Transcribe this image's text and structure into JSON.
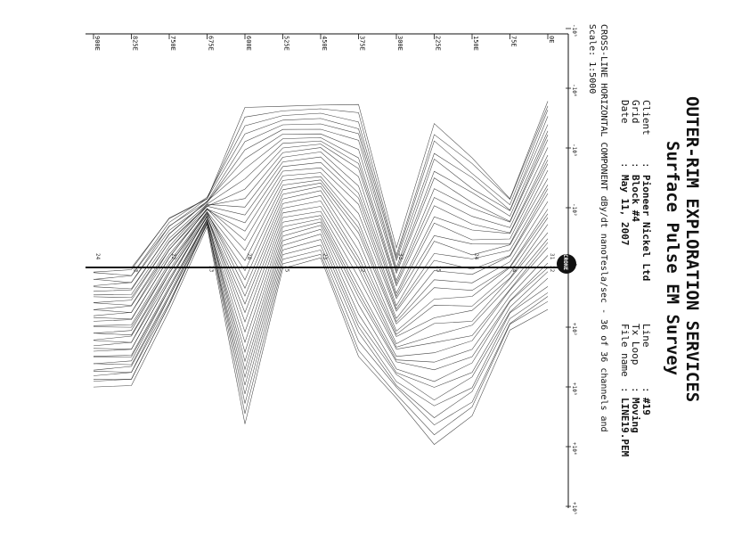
{
  "header": {
    "title_line1": "OUTER-RIM EXPLORATION SERVICES",
    "title_line2": "Surface Pulse EM Survey",
    "left_fields": [
      {
        "label": "Client",
        "value": "Pioneer Nickel Ltd"
      },
      {
        "label": "Grid",
        "value": "Block #4"
      },
      {
        "label": "Date",
        "value": "May 11, 2007"
      }
    ],
    "right_fields": [
      {
        "label": "Line",
        "value": "#19"
      },
      {
        "label": "Tx Loop",
        "value": "Moving"
      },
      {
        "label": "File name",
        "value": "LINE19.PEM"
      }
    ]
  },
  "logo_text": "CRONE",
  "caption": {
    "line1": "CROSS-LINE HORIZONTAL COMPONENT dBy/dt nanoTesla/sec - 36 of 36 channels and",
    "line2": "Scale: 1:5000"
  },
  "colors": {
    "ink": "#111111",
    "paper": "#ffffff"
  },
  "chart_data": {
    "type": "line",
    "orientation": "rotated-90-clockwise",
    "y_scale": "symlog",
    "y_tick_labels": [
      "-10⁵",
      "-10⁴",
      "-10³",
      "-10²",
      "0",
      "+10²",
      "+10³",
      "+10⁴",
      "+10⁵"
    ],
    "y_tick_values": [
      -100000,
      -10000,
      -1000,
      -100,
      0,
      100,
      1000,
      10000,
      100000
    ],
    "x_tick_labels": [
      "0E",
      "75E",
      "150E",
      "225E",
      "300E",
      "375E",
      "450E",
      "525E",
      "600E",
      "675E",
      "750E",
      "825E",
      "900E"
    ],
    "stations": [
      0,
      75,
      150,
      225,
      300,
      375,
      450,
      525,
      600,
      675,
      750,
      825,
      900
    ],
    "channel_count": 36,
    "envelope_upper": [
      -6500,
      -150,
      -700,
      -2500,
      -20,
      -5000,
      -5000,
      -5000,
      -5000,
      -150,
      -70,
      -6,
      -3
    ],
    "envelope_lower": [
      50,
      110,
      3000,
      9000,
      1500,
      300,
      -15,
      -10,
      4000,
      -50,
      50,
      900,
      950
    ],
    "station_labels": [
      {
        "station": 0,
        "text": "22"
      },
      {
        "station": 0,
        "text": "31"
      },
      {
        "station": 75,
        "text": "44"
      },
      {
        "station": 150,
        "text": "24"
      },
      {
        "station": 225,
        "text": "35"
      },
      {
        "station": 300,
        "text": "33"
      },
      {
        "station": 375,
        "text": "22"
      },
      {
        "station": 450,
        "text": "23"
      },
      {
        "station": 525,
        "text": "25"
      },
      {
        "station": 600,
        "text": "28"
      },
      {
        "station": 675,
        "text": "23"
      },
      {
        "station": 750,
        "text": "22"
      },
      {
        "station": 825,
        "text": "23"
      },
      {
        "station": 900,
        "text": "24"
      }
    ]
  }
}
